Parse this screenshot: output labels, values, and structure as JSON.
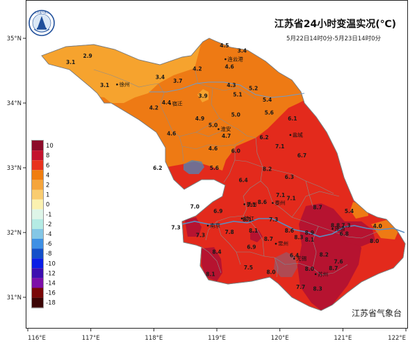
{
  "title": "江苏省24小时变温实况(℃)",
  "subtitle": "5月22日14时0分-5月23日14时0分",
  "issuer": "江苏省气象台",
  "logo_text": "江苏省气象台",
  "axes": {
    "lon_ticks": [
      "116°E",
      "117°E",
      "118°E",
      "119°E",
      "120°E",
      "121°E",
      "122°E"
    ],
    "lat_ticks": [
      "35°N",
      "34°N",
      "33°N",
      "32°N",
      "31°N"
    ]
  },
  "legend": {
    "entries": [
      {
        "label": "10",
        "color": "#8c0b2a"
      },
      {
        "label": "8",
        "color": "#c4122d"
      },
      {
        "label": "6",
        "color": "#e8321e"
      },
      {
        "label": "4",
        "color": "#f07d10"
      },
      {
        "label": "2",
        "color": "#f5a53c"
      },
      {
        "label": "1",
        "color": "#f9cc70"
      },
      {
        "label": "0",
        "color": "#fbf1b0"
      },
      {
        "label": "-1",
        "color": "#def5e8"
      },
      {
        "label": "-2",
        "color": "#b4ebe4"
      },
      {
        "label": "-4",
        "color": "#84c7e6"
      },
      {
        "label": "-6",
        "color": "#3f90e4"
      },
      {
        "label": "-8",
        "color": "#1450c9"
      },
      {
        "label": "-10",
        "color": "#0a1ee6"
      },
      {
        "label": "-12",
        "color": "#3c0fb0"
      },
      {
        "label": "-14",
        "color": "#7d0fa8"
      },
      {
        "label": "-16",
        "color": "#7a0808"
      },
      {
        "label": "-18",
        "color": "#3c0505"
      }
    ]
  },
  "cities": [
    {
      "name": "连云港",
      "lon": 119.17,
      "lat": 34.65
    },
    {
      "name": "徐州",
      "lon": 117.45,
      "lat": 34.26
    },
    {
      "name": "宿迁",
      "lon": 118.29,
      "lat": 33.96
    },
    {
      "name": "淮安",
      "lon": 119.06,
      "lat": 33.57
    },
    {
      "name": "盐城",
      "lon": 120.2,
      "lat": 33.48
    },
    {
      "name": "扬州",
      "lon": 119.47,
      "lat": 32.41
    },
    {
      "name": "泰州",
      "lon": 119.92,
      "lat": 32.43
    },
    {
      "name": "镇江",
      "lon": 119.43,
      "lat": 32.19
    },
    {
      "name": "南京",
      "lon": 118.89,
      "lat": 32.08
    },
    {
      "name": "常州",
      "lon": 119.97,
      "lat": 31.8
    },
    {
      "name": "南通",
      "lon": 120.87,
      "lat": 32.03
    },
    {
      "name": "无锡",
      "lon": 120.26,
      "lat": 31.57
    },
    {
      "name": "苏州",
      "lon": 120.6,
      "lat": 31.33
    }
  ],
  "stations": [
    {
      "v": "4.5",
      "lon": 119.12,
      "lat": 34.86
    },
    {
      "v": "3.4",
      "lon": 119.4,
      "lat": 34.78
    },
    {
      "v": "4.6",
      "lon": 119.2,
      "lat": 34.53
    },
    {
      "v": "3.1",
      "lon": 116.68,
      "lat": 34.6
    },
    {
      "v": "2.9",
      "lon": 116.95,
      "lat": 34.7
    },
    {
      "v": "4.2",
      "lon": 118.69,
      "lat": 34.5
    },
    {
      "v": "3.4",
      "lon": 118.1,
      "lat": 34.37
    },
    {
      "v": "3.7",
      "lon": 118.38,
      "lat": 34.31
    },
    {
      "v": "3.1",
      "lon": 117.22,
      "lat": 34.25
    },
    {
      "v": "4.3",
      "lon": 119.23,
      "lat": 34.25
    },
    {
      "v": "5.2",
      "lon": 119.58,
      "lat": 34.2
    },
    {
      "v": "5.1",
      "lon": 119.33,
      "lat": 34.1
    },
    {
      "v": "3.9",
      "lon": 118.78,
      "lat": 34.08
    },
    {
      "v": "4.4",
      "lon": 118.2,
      "lat": 33.98
    },
    {
      "v": "5.4",
      "lon": 119.8,
      "lat": 34.02
    },
    {
      "v": "4.2",
      "lon": 118.0,
      "lat": 33.9
    },
    {
      "v": "5.0",
      "lon": 119.3,
      "lat": 33.79
    },
    {
      "v": "5.6",
      "lon": 119.83,
      "lat": 33.82
    },
    {
      "v": "4.9",
      "lon": 118.73,
      "lat": 33.73
    },
    {
      "v": "5.0",
      "lon": 118.94,
      "lat": 33.63
    },
    {
      "v": "6.1",
      "lon": 120.2,
      "lat": 33.73
    },
    {
      "v": "4.7",
      "lon": 119.15,
      "lat": 33.46
    },
    {
      "v": "4.6",
      "lon": 118.28,
      "lat": 33.5
    },
    {
      "v": "6.2",
      "lon": 119.75,
      "lat": 33.44
    },
    {
      "v": "4.6",
      "lon": 118.94,
      "lat": 33.27
    },
    {
      "v": "6.0",
      "lon": 119.3,
      "lat": 33.23
    },
    {
      "v": "7.1",
      "lon": 120.0,
      "lat": 33.3
    },
    {
      "v": "6.7",
      "lon": 120.35,
      "lat": 33.16
    },
    {
      "v": "6.2",
      "lon": 118.06,
      "lat": 32.97
    },
    {
      "v": "5.6",
      "lon": 118.96,
      "lat": 32.97
    },
    {
      "v": "8.2",
      "lon": 119.8,
      "lat": 32.95
    },
    {
      "v": "6.3",
      "lon": 120.15,
      "lat": 32.83
    },
    {
      "v": "6.4",
      "lon": 119.42,
      "lat": 32.78
    },
    {
      "v": "7.1",
      "lon": 120.01,
      "lat": 32.55
    },
    {
      "v": "7.1",
      "lon": 120.18,
      "lat": 32.5
    },
    {
      "v": "7.0",
      "lon": 118.65,
      "lat": 32.37
    },
    {
      "v": "7.1",
      "lon": 119.55,
      "lat": 32.4
    },
    {
      "v": "8.6",
      "lon": 119.72,
      "lat": 32.44
    },
    {
      "v": "6.9",
      "lon": 119.02,
      "lat": 32.3
    },
    {
      "v": "8.7",
      "lon": 120.6,
      "lat": 32.36
    },
    {
      "v": "5.4",
      "lon": 121.1,
      "lat": 32.3
    },
    {
      "v": "8.1",
      "lon": 119.48,
      "lat": 32.17
    },
    {
      "v": "7.3",
      "lon": 119.9,
      "lat": 32.17
    },
    {
      "v": "7.3",
      "lon": 118.35,
      "lat": 32.05
    },
    {
      "v": "8.1",
      "lon": 119.58,
      "lat": 32.0
    },
    {
      "v": "7.3",
      "lon": 118.74,
      "lat": 31.93
    },
    {
      "v": "7.8",
      "lon": 119.2,
      "lat": 31.98
    },
    {
      "v": "8.6",
      "lon": 120.15,
      "lat": 32.0
    },
    {
      "v": "8.9",
      "lon": 120.47,
      "lat": 31.97
    },
    {
      "v": "8.3",
      "lon": 120.3,
      "lat": 31.9
    },
    {
      "v": "8.8",
      "lon": 120.88,
      "lat": 32.08
    },
    {
      "v": "7.3",
      "lon": 121.05,
      "lat": 32.08
    },
    {
      "v": "4.0",
      "lon": 121.55,
      "lat": 32.07
    },
    {
      "v": "6.8",
      "lon": 121.02,
      "lat": 31.95
    },
    {
      "v": "8.7",
      "lon": 119.82,
      "lat": 31.87
    },
    {
      "v": "8.1",
      "lon": 120.47,
      "lat": 31.86
    },
    {
      "v": "8.0",
      "lon": 121.5,
      "lat": 31.84
    },
    {
      "v": "6.9",
      "lon": 119.55,
      "lat": 31.75
    },
    {
      "v": "8.4",
      "lon": 119.0,
      "lat": 31.67
    },
    {
      "v": "6.4",
      "lon": 120.23,
      "lat": 31.62
    },
    {
      "v": "8.2",
      "lon": 120.7,
      "lat": 31.63
    },
    {
      "v": "7.6",
      "lon": 120.93,
      "lat": 31.52
    },
    {
      "v": "7.5",
      "lon": 119.5,
      "lat": 31.43
    },
    {
      "v": "8.0",
      "lon": 120.47,
      "lat": 31.41
    },
    {
      "v": "8.7",
      "lon": 120.85,
      "lat": 31.42
    },
    {
      "v": "8.1",
      "lon": 118.9,
      "lat": 31.33
    },
    {
      "v": "8.0",
      "lon": 119.86,
      "lat": 31.36
    },
    {
      "v": "7.7",
      "lon": 120.33,
      "lat": 31.13
    },
    {
      "v": "8.3",
      "lon": 120.6,
      "lat": 31.1
    }
  ]
}
